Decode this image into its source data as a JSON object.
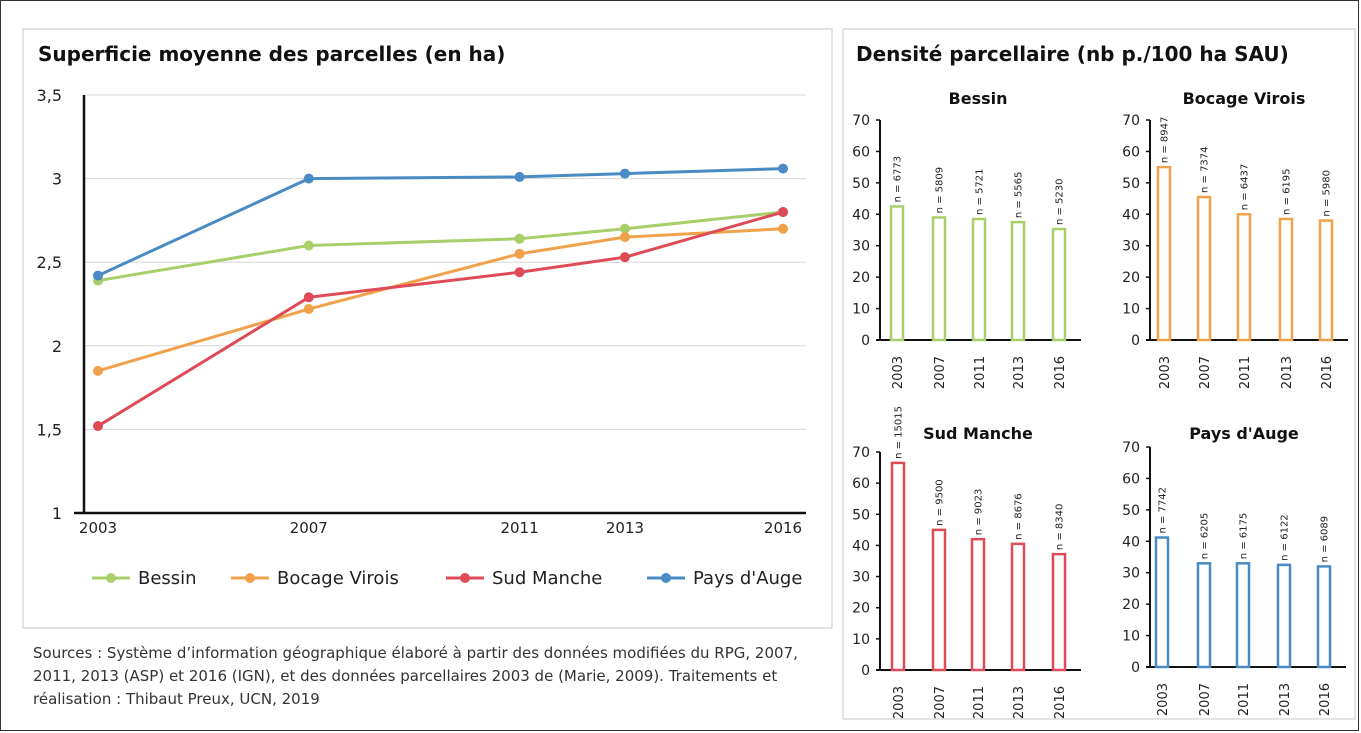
{
  "line_chart": {
    "chart_data": {
      "type": "line",
      "title": "Superficie moyenne des parcelles (en ha)",
      "x": [
        "2003",
        "2007",
        "2011",
        "2013",
        "2016"
      ],
      "x_numeric": [
        2003,
        2007,
        2011,
        2013,
        2016
      ],
      "ylim": [
        1,
        3.5
      ],
      "yticks": [
        "1",
        "1,5",
        "2",
        "2,5",
        "3",
        "3,5"
      ],
      "ytick_values": [
        1,
        1.5,
        2,
        2.5,
        3,
        3.5
      ],
      "grid": true,
      "legend_position": "bottom",
      "series": [
        {
          "name": "Bessin",
          "color": "#a9cf6a",
          "values": [
            2.39,
            2.6,
            2.64,
            2.7,
            2.8
          ]
        },
        {
          "name": "Bocage Virois",
          "color": "#f0a24a",
          "values": [
            1.85,
            2.22,
            2.55,
            2.65,
            2.7
          ]
        },
        {
          "name": "Sud Manche",
          "color": "#de4b57",
          "values": [
            1.52,
            2.29,
            2.44,
            2.53,
            2.8
          ]
        },
        {
          "name": "Pays d'Auge",
          "color": "#4a8bc4",
          "values": [
            2.42,
            3.0,
            3.01,
            3.03,
            3.06
          ]
        }
      ]
    }
  },
  "density": {
    "title": "Densité parcellaire (nb p./100 ha SAU)",
    "chart_data": [
      {
        "type": "bar",
        "title": "Bessin",
        "color": "#a9cf6a",
        "categories": [
          "2003",
          "2007",
          "2011",
          "2013",
          "2016"
        ],
        "values": [
          42.5,
          39,
          38.5,
          37.5,
          35.3
        ],
        "labels": [
          "n = 6773",
          "n = 5809",
          "n = 5721",
          "n = 5565",
          "n = 5230"
        ],
        "ylim": [
          0,
          70
        ],
        "yticks": [
          "0",
          "10",
          "20",
          "30",
          "40",
          "50",
          "60",
          "70"
        ]
      },
      {
        "type": "bar",
        "title": "Bocage Virois",
        "color": "#f0a24a",
        "categories": [
          "2003",
          "2007",
          "2011",
          "2013",
          "2016"
        ],
        "values": [
          55,
          45.5,
          40,
          38.5,
          38
        ],
        "labels": [
          "n = 8947",
          "n = 7374",
          "n = 6437",
          "n = 6195",
          "n = 5980"
        ],
        "ylim": [
          0,
          70
        ],
        "yticks": [
          "0",
          "10",
          "20",
          "30",
          "40",
          "50",
          "60",
          "70"
        ]
      },
      {
        "type": "bar",
        "title": "Sud Manche",
        "color": "#de4b57",
        "categories": [
          "2003",
          "2007",
          "2011",
          "2013",
          "2016"
        ],
        "values": [
          66.5,
          45,
          42,
          40.5,
          37.2
        ],
        "labels": [
          "n = 15015",
          "n = 9500",
          "n = 9023",
          "n = 8676",
          "n = 8340"
        ],
        "ylim": [
          0,
          70
        ],
        "yticks": [
          "0",
          "10",
          "20",
          "30",
          "40",
          "50",
          "60",
          "70"
        ]
      },
      {
        "type": "bar",
        "title": "Pays d'Auge",
        "color": "#4a8bc4",
        "categories": [
          "2003",
          "2007",
          "2011",
          "2013",
          "2016"
        ],
        "values": [
          41.2,
          33,
          33,
          32.5,
          32
        ],
        "labels": [
          "n = 7742",
          "n = 6205",
          "n = 6175",
          "n = 6122",
          "n = 6089"
        ],
        "ylim": [
          0,
          70
        ],
        "yticks": [
          "0",
          "10",
          "20",
          "30",
          "40",
          "50",
          "60",
          "70"
        ]
      }
    ]
  },
  "sources": "Sources : Système d’information géographique élaboré à partir des données modifiées du RPG, 2007, 2011, 2013 (ASP) et 2016 (IGN), et des données parcellaires 2003 de (Marie, 2009). Traitements et réalisation : Thibaut Preux, UCN, 2019"
}
